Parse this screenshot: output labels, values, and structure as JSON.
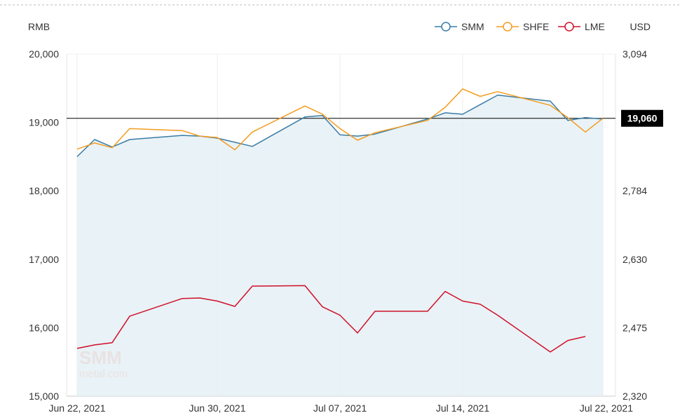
{
  "chart_data": {
    "type": "line",
    "units": {
      "left": "RMB",
      "right": "USD"
    },
    "x": [
      "2021-06-22",
      "2021-06-23",
      "2021-06-24",
      "2021-06-25",
      "2021-06-28",
      "2021-06-29",
      "2021-06-30",
      "2021-07-01",
      "2021-07-02",
      "2021-07-05",
      "2021-07-06",
      "2021-07-07",
      "2021-07-08",
      "2021-07-09",
      "2021-07-12",
      "2021-07-13",
      "2021-07-14",
      "2021-07-15",
      "2021-07-16",
      "2021-07-19",
      "2021-07-20",
      "2021-07-21",
      "2021-07-22"
    ],
    "x_ticks": [
      {
        "date": "2021-06-22",
        "label": "Jun 22, 2021"
      },
      {
        "date": "2021-06-30",
        "label": "Jun 30, 2021"
      },
      {
        "date": "2021-07-07",
        "label": "Jul 07, 2021"
      },
      {
        "date": "2021-07-14",
        "label": "Jul 14, 2021"
      },
      {
        "date": "2021-07-22",
        "label": "Jul 22, 2021"
      }
    ],
    "y_left": {
      "min": 15000,
      "max": 20000,
      "ticks": [
        "15,000",
        "16,000",
        "17,000",
        "18,000",
        "19,000",
        "20,000"
      ]
    },
    "y_right": {
      "min": 2320,
      "max": 3094,
      "ticks": [
        "2,320",
        "2,475",
        "2,630",
        "2,784",
        "2,939",
        "3,094"
      ]
    },
    "series": [
      {
        "name": "SMM",
        "axis": "left",
        "color": "#3a7ca5",
        "filled": true,
        "values": [
          18500,
          18750,
          18640,
          18750,
          18810,
          18800,
          18770,
          18710,
          18650,
          19080,
          19100,
          18820,
          18800,
          18830,
          19050,
          19140,
          19120,
          19260,
          19400,
          19310,
          19030,
          19070,
          19050
        ]
      },
      {
        "name": "SHFE",
        "axis": "left",
        "color": "#f39c1f",
        "values": [
          18610,
          18700,
          18630,
          18910,
          18880,
          18800,
          18780,
          18600,
          18860,
          19240,
          19120,
          18910,
          18740,
          18850,
          19030,
          19220,
          19490,
          19380,
          19450,
          19250,
          19070,
          18860,
          19060
        ]
      },
      {
        "name": "LME",
        "axis": "right",
        "color": "#d0102a",
        "values": [
          2428,
          2436,
          2441,
          2501,
          2541,
          2542,
          2535,
          2523,
          2569,
          2570,
          2522,
          2503,
          2463,
          2512,
          2512,
          2557,
          2535,
          2528,
          2503,
          2420,
          2446,
          2455,
          null
        ]
      }
    ],
    "reference_line": {
      "value": 19060,
      "label": "19,060",
      "color": "#000000"
    },
    "watermark": {
      "line1": "SMM",
      "line2": "metal.com"
    },
    "legend_position": "top-right",
    "grid": {
      "vertical": true,
      "horizontal": false
    }
  }
}
